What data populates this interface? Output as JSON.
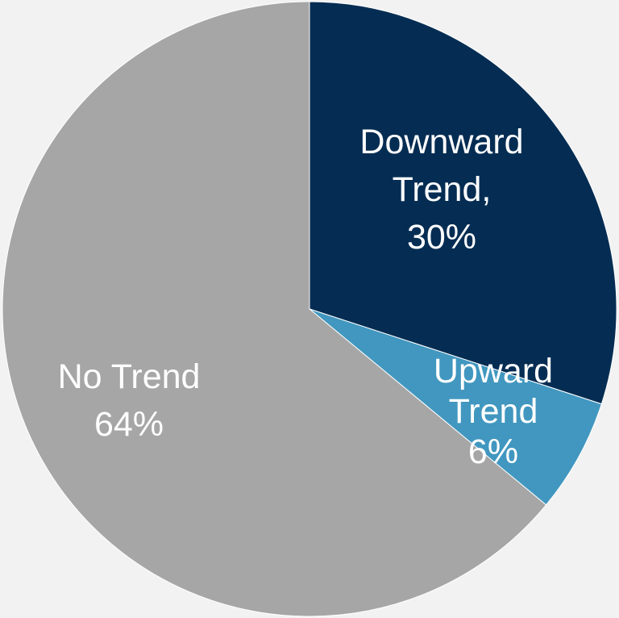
{
  "chart_data": {
    "type": "pie",
    "slices": [
      {
        "label_lines": [
          "Downward",
          "Trend,",
          "30%"
        ],
        "category": "Downward Trend",
        "value": 30,
        "color": "#052d53"
      },
      {
        "label_lines": [
          "Upward",
          "Trend",
          "6%"
        ],
        "category": "Upward Trend",
        "value": 6,
        "color": "#4197bf"
      },
      {
        "label_lines": [
          "No Trend",
          "64%"
        ],
        "category": "No Trend",
        "value": 64,
        "color": "#a6a6a6"
      }
    ],
    "start_angle_deg": 0,
    "direction": "clockwise",
    "background": "#f2f2f2",
    "label_color": "#ffffff"
  }
}
